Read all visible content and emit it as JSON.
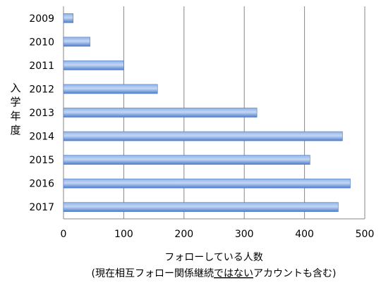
{
  "chart_data": {
    "type": "bar",
    "orientation": "horizontal",
    "categories": [
      "2009",
      "2010",
      "2011",
      "2012",
      "2013",
      "2014",
      "2015",
      "2016",
      "2017"
    ],
    "values": [
      16,
      44,
      100,
      156,
      321,
      463,
      409,
      476,
      456
    ],
    "xlabel": "フォローしている人数",
    "xlabel_sub_prefix": "(現在相互フォロー関係継続",
    "xlabel_sub_underlined": "ではない",
    "xlabel_sub_suffix": "アカウントも含む)",
    "ylabel": "入学年度",
    "xlim": [
      0,
      500
    ],
    "xticks": [
      "0",
      "100",
      "200",
      "300",
      "400",
      "500"
    ],
    "grid": "vertical",
    "bar_color": "#4f81bd"
  }
}
